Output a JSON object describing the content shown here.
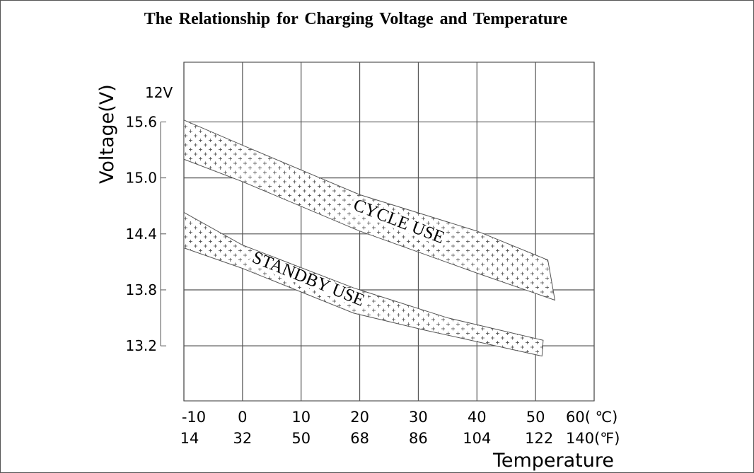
{
  "chart_data": {
    "type": "area",
    "title": "The Relationship for Charging Voltage and Temperature",
    "ylabel": "Voltage(V)",
    "ylabel_unit_note": "12V",
    "xlabel": "Temperature",
    "xlim": [
      -10,
      60
    ],
    "ylim": [
      12.61,
      16.24
    ],
    "grid": true,
    "x_ticks_c": [
      "-10",
      "0",
      "10",
      "20",
      "30",
      "40",
      "50",
      "60( ℃)"
    ],
    "x_ticks_f": [
      "14",
      "32",
      "50",
      "68",
      "86",
      "104",
      "122",
      "140(℉)"
    ],
    "x_tick_values": [
      -10,
      0,
      10,
      20,
      30,
      40,
      50,
      60
    ],
    "y_ticks": [
      "15.6",
      "15.0",
      "14.4",
      "13.8",
      "13.2"
    ],
    "y_tick_values": [
      15.6,
      15.0,
      14.4,
      13.8,
      13.2
    ],
    "bands": [
      {
        "name": "CYCLE USE",
        "upper": [
          [
            -10,
            15.62
          ],
          [
            0,
            15.35
          ],
          [
            20,
            14.82
          ],
          [
            40,
            14.43
          ],
          [
            52.1,
            14.12
          ]
        ],
        "lower": [
          [
            -10,
            15.2
          ],
          [
            0,
            14.96
          ],
          [
            20,
            14.43
          ],
          [
            40,
            13.98
          ],
          [
            53.3,
            13.69
          ]
        ]
      },
      {
        "name": "STANDBY USE",
        "upper": [
          [
            -10,
            14.63
          ],
          [
            0,
            14.28
          ],
          [
            19,
            13.82
          ],
          [
            35,
            13.5
          ],
          [
            51.3,
            13.26
          ]
        ],
        "lower": [
          [
            -10,
            14.25
          ],
          [
            0,
            14.03
          ],
          [
            19,
            13.55
          ],
          [
            31,
            13.37
          ],
          [
            51.1,
            13.09
          ]
        ]
      }
    ],
    "colors": {
      "line": "#555555",
      "grid": "#555555",
      "text": "#000000"
    }
  }
}
